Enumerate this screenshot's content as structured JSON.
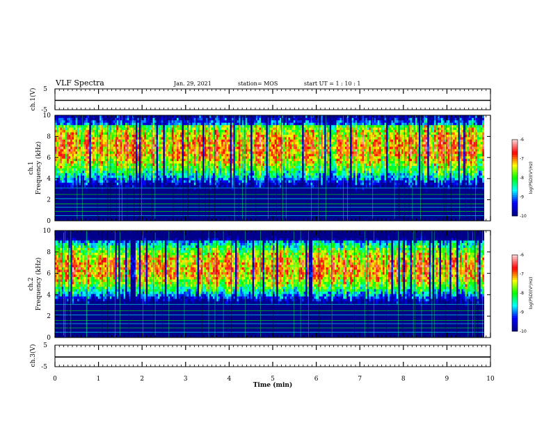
{
  "header": {
    "title": "VLF Spectra",
    "date": "Jan. 29, 2021",
    "station": "station= MOS",
    "start": "start  UT =   1 : 10 : 1"
  },
  "chart_data": [
    {
      "type": "line",
      "panel": "ch1-waveform",
      "ylabel": "ch.1(V)",
      "ylim": [
        -5,
        5
      ],
      "yticks": [
        "5",
        "-5"
      ],
      "xlim": [
        0,
        10
      ],
      "series": [
        {
          "values_constant": -0.5
        }
      ]
    },
    {
      "type": "heatmap",
      "panel": "ch1-spectrogram",
      "ylabel": "ch.1\nFrequency (kHz)",
      "ylabel_line1": "ch.1",
      "ylabel_line2": "Frequency (kHz)",
      "ylim": [
        0,
        10
      ],
      "yticks": [
        "0",
        "2",
        "4",
        "6",
        "8",
        "10"
      ],
      "xlim": [
        0,
        10
      ],
      "data_end_min": 9.85,
      "dominant_band_khz": [
        5,
        9
      ],
      "colorbar": {
        "label": "log(PSD)(V²/Hz)",
        "range": [
          -10,
          -6
        ],
        "ticks": [
          "-6",
          "-7",
          "-8",
          "-9",
          "-10"
        ]
      }
    },
    {
      "type": "heatmap",
      "panel": "ch2-spectrogram",
      "ylabel": "ch.2\nFrequency (kHz)",
      "ylabel_line1": "ch.2",
      "ylabel_line2": "Frequency (kHz)",
      "ylim": [
        0,
        10
      ],
      "yticks": [
        "0",
        "2",
        "4",
        "6",
        "8",
        "10"
      ],
      "xlim": [
        0,
        10
      ],
      "data_end_min": 9.85,
      "dominant_band_khz": [
        5,
        8
      ],
      "colorbar": {
        "label": "log(PSD)(V²/Hz)",
        "range": [
          -10,
          -6
        ],
        "ticks": [
          "-6",
          "-7",
          "-8",
          "-9",
          "-10"
        ]
      }
    },
    {
      "type": "line",
      "panel": "ch3-waveform",
      "ylabel": "ch.3(V)",
      "ylim": [
        -5,
        5
      ],
      "yticks": [
        "5",
        "-5"
      ],
      "xlim": [
        0,
        10
      ],
      "xlabel": "Time (min)",
      "xticks": [
        "0",
        "1",
        "2",
        "3",
        "4",
        "5",
        "6",
        "7",
        "8",
        "9",
        "10"
      ],
      "series": [
        {
          "values_constant": -0.5
        }
      ]
    }
  ],
  "colors": {
    "scale": [
      "#00008b",
      "#0000ff",
      "#00ffff",
      "#00ff00",
      "#ffff00",
      "#ff0000",
      "#ffc8c8"
    ]
  }
}
